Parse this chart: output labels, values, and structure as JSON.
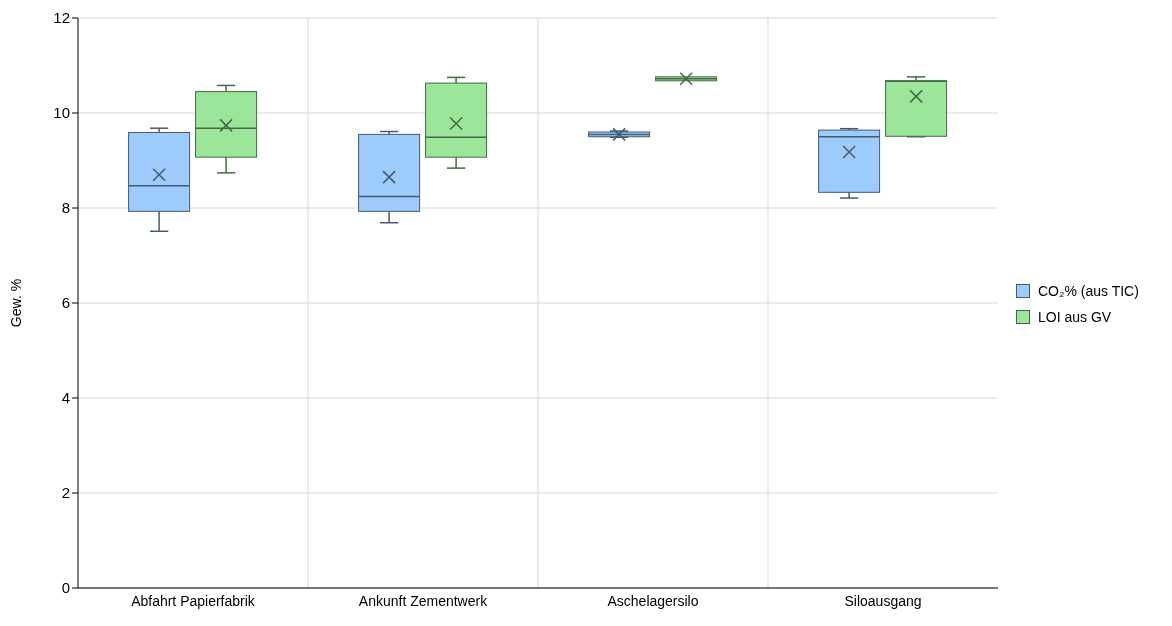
{
  "chart_data": {
    "type": "box",
    "ylabel": "Gew. %",
    "categories": [
      "Abfahrt Papierfabrik",
      "Ankunft Zementwerk",
      "Aschelagersilo",
      "Siloausgang"
    ],
    "ylim": [
      0,
      12
    ],
    "yticks": [
      0,
      2,
      4,
      6,
      8,
      10,
      12
    ],
    "grid": true,
    "legend": "right",
    "marker": "cross",
    "series": [
      {
        "name": "CO₂% (aus TIC)",
        "color": "#9ccbfc",
        "boxes": [
          {
            "low": 7.51,
            "q1": 7.93,
            "median": 8.47,
            "q3": 9.59,
            "high": 9.68,
            "mean": 8.7
          },
          {
            "low": 7.69,
            "q1": 7.93,
            "median": 8.24,
            "q3": 9.55,
            "high": 9.61,
            "mean": 8.65
          },
          {
            "low": 9.49,
            "q1": 9.5,
            "median": 9.55,
            "q3": 9.6,
            "high": 9.62,
            "mean": 9.55
          },
          {
            "low": 8.21,
            "q1": 8.33,
            "median": 9.5,
            "q3": 9.64,
            "high": 9.67,
            "mean": 9.18
          }
        ]
      },
      {
        "name": "LOI aus GV",
        "color": "#9be69b",
        "boxes": [
          {
            "low": 8.74,
            "q1": 9.07,
            "median": 9.68,
            "q3": 10.45,
            "high": 10.58,
            "mean": 9.74
          },
          {
            "low": 8.84,
            "q1": 9.07,
            "median": 9.49,
            "q3": 10.63,
            "high": 10.75,
            "mean": 9.78
          },
          {
            "low": 10.72,
            "q1": 10.72,
            "median": 10.72,
            "q3": 10.72,
            "high": 10.72,
            "mean": 10.72
          },
          {
            "low": 9.5,
            "q1": 9.51,
            "median": 10.67,
            "q3": 10.68,
            "high": 10.76,
            "mean": 10.35
          }
        ]
      }
    ]
  }
}
